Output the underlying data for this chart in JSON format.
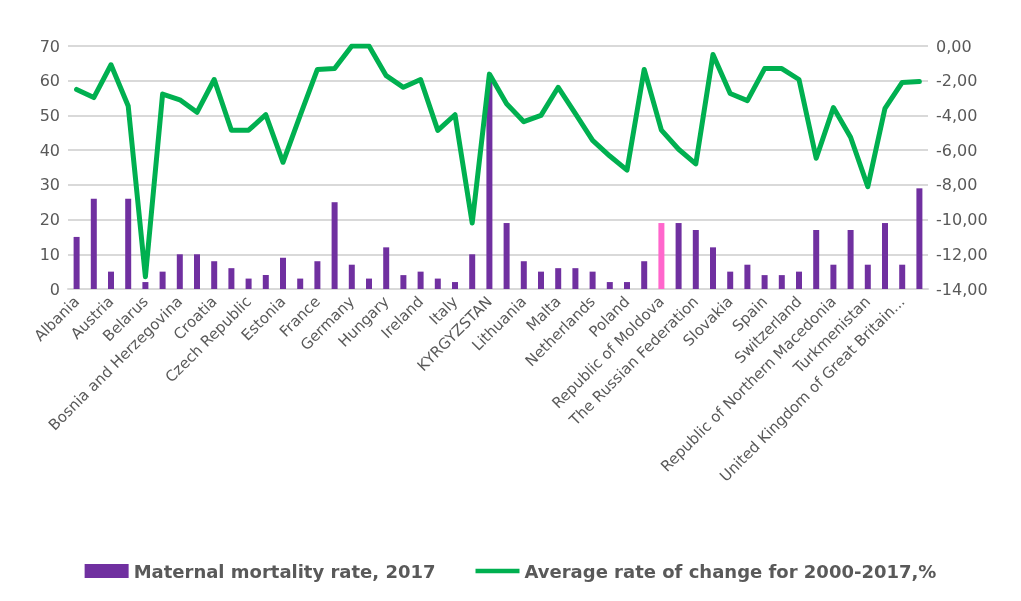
{
  "chart_data": {
    "type": "bar",
    "categories": [
      "Albania",
      null,
      "Austria",
      null,
      "Belarus",
      null,
      "Bosnia and Herzegovina",
      null,
      "Croatia",
      null,
      "Czech Republic",
      null,
      "Estonia",
      null,
      "France",
      null,
      "Germany",
      null,
      "Hungary",
      null,
      "Ireland",
      null,
      "Italy",
      null,
      "KYRGYZSTAN",
      null,
      "Lithuania",
      null,
      "Malta",
      null,
      "Netherlands",
      null,
      "Poland",
      null,
      "Republic of Moldova",
      null,
      "The Russian Federation",
      null,
      "Slovakia",
      null,
      "Spain",
      null,
      "Switzerland",
      null,
      "Republic of Northern Macedonia",
      null,
      "Turkmenistan",
      null,
      "United Kingdom of Great Britain...",
      null
    ],
    "series": [
      {
        "name": "Maternal mortality rate, 2017",
        "color": "#7030a0",
        "colors": [
          "#7030a0",
          "#7030a0",
          "#7030a0",
          "#7030a0",
          "#7030a0",
          "#7030a0",
          "#7030a0",
          "#7030a0",
          "#7030a0",
          "#7030a0",
          "#7030a0",
          "#7030a0",
          "#7030a0",
          "#7030a0",
          "#7030a0",
          "#7030a0",
          "#7030a0",
          "#7030a0",
          "#7030a0",
          "#7030a0",
          "#7030a0",
          "#7030a0",
          "#7030a0",
          "#7030a0",
          "#7030a0",
          "#7030a0",
          "#7030a0",
          "#7030a0",
          "#7030a0",
          "#7030a0",
          "#7030a0",
          "#7030a0",
          "#7030a0",
          "#7030a0",
          "#ff66cc",
          "#7030a0",
          "#7030a0",
          "#7030a0",
          "#7030a0",
          "#7030a0",
          "#7030a0",
          "#7030a0",
          "#7030a0",
          "#7030a0",
          "#7030a0",
          "#7030a0",
          "#7030a0",
          "#7030a0",
          "#7030a0",
          "#7030a0"
        ],
        "values": [
          15,
          26,
          5,
          26,
          2,
          5,
          10,
          10,
          8,
          6,
          3,
          4,
          9,
          3,
          8,
          25,
          7,
          3,
          12,
          4,
          5,
          3,
          2,
          10,
          60,
          19,
          8,
          5,
          6,
          6,
          5,
          2,
          2,
          8,
          19,
          19,
          17,
          12,
          5,
          7,
          4,
          4,
          5,
          17,
          7,
          17,
          7,
          19,
          7,
          29
        ]
      },
      {
        "name": "Average rate of change for 2000-2017,%",
        "type": "line",
        "axis": "y2",
        "color": "#00b050",
        "values": [
          -2.5,
          -2.97,
          -1.08,
          -3.46,
          -13.3,
          -2.77,
          -3.1,
          -3.82,
          -1.93,
          -4.85,
          -4.85,
          -3.96,
          -6.7,
          -4.0,
          -1.35,
          -1.3,
          0,
          0,
          -1.71,
          -2.38,
          -1.93,
          -4.86,
          -3.96,
          -10.2,
          -1.62,
          -3.33,
          -4.36,
          -4.0,
          -2.38,
          -3.9,
          -5.44,
          -6.34,
          -7.15,
          -1.35,
          -4.85,
          -5.95,
          -6.79,
          -0.49,
          -2.74,
          -3.15,
          -1.3,
          -1.3,
          -1.93,
          -6.47,
          -3.55,
          -5.26,
          -8.1,
          -3.59,
          -2.1,
          -2.05
        ]
      }
    ],
    "ylim": [
      0,
      70
    ],
    "yticks": [
      0,
      10,
      20,
      30,
      40,
      50,
      60,
      70
    ],
    "y2lim": [
      -14,
      0
    ],
    "y2ticks": [
      {
        "value": -14,
        "label": "-14,00"
      },
      {
        "value": -12,
        "label": "-12,00"
      },
      {
        "value": -10,
        "label": "-10,00"
      },
      {
        "value": -8,
        "label": "-8,00"
      },
      {
        "value": -6,
        "label": "-6,00"
      },
      {
        "value": -4,
        "label": "-4,00"
      },
      {
        "value": -2,
        "label": "-2,00"
      },
      {
        "value": 0,
        "label": "0,00"
      }
    ],
    "grid": "y",
    "legend": "bottom",
    "marker": "none",
    "line_style": "solid"
  }
}
